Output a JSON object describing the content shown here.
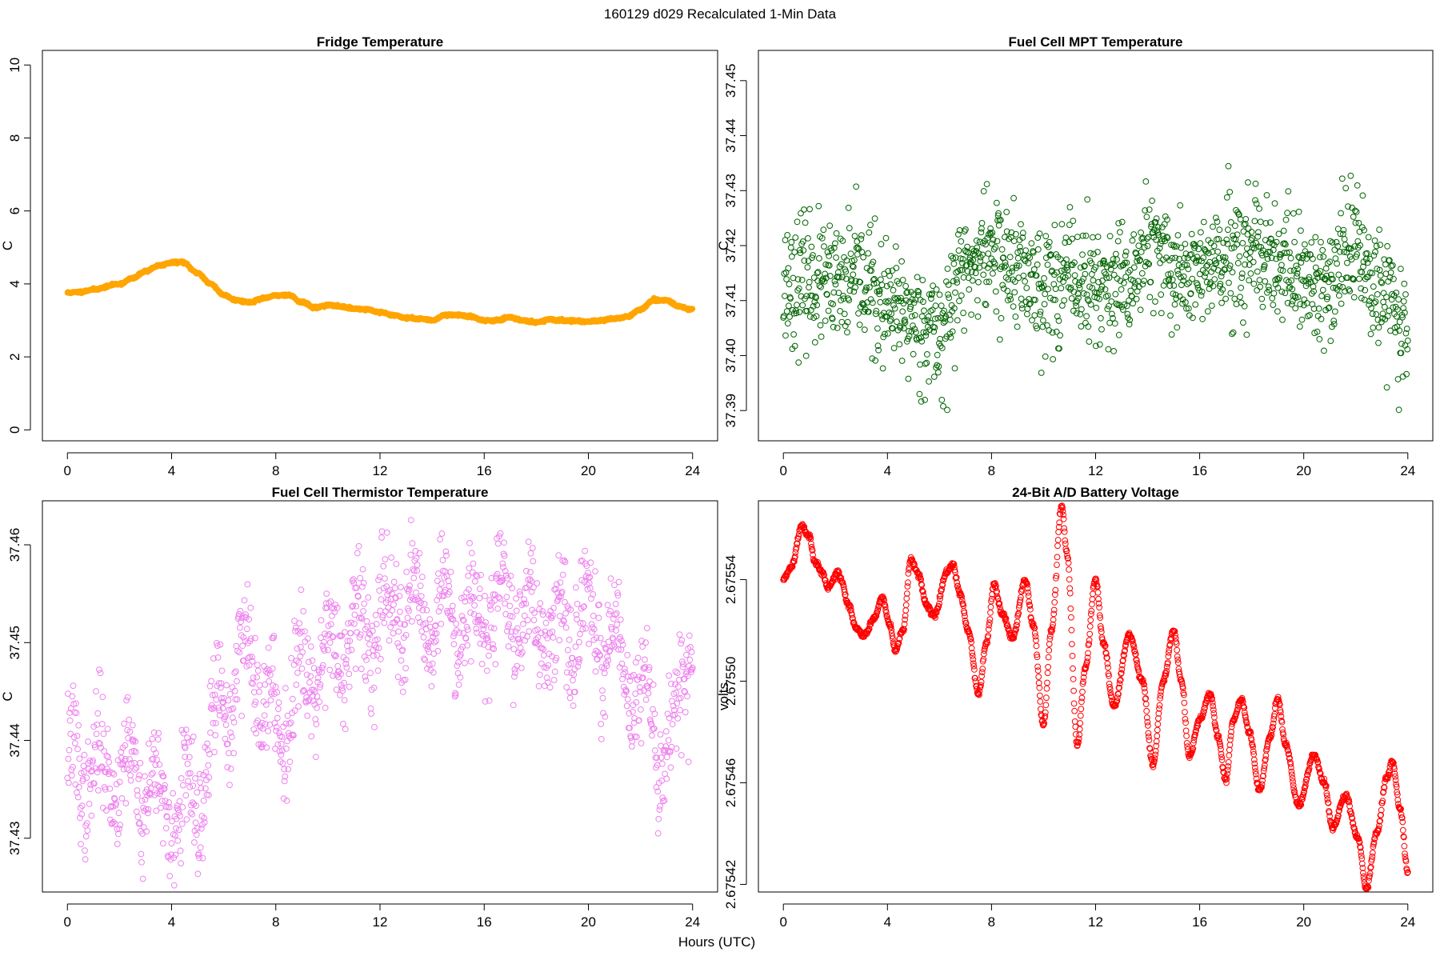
{
  "figure": {
    "title": "160129   d029   Recalculated 1-Min Data",
    "xlabel": "Hours (UTC)"
  },
  "chart_data": [
    {
      "id": "fridge",
      "type": "scatter",
      "title": "Fridge Temperature",
      "ylabel": "C",
      "xlabel": "",
      "x_ticks": [
        0,
        4,
        8,
        12,
        16,
        20,
        24
      ],
      "y_ticks": [
        0,
        2,
        4,
        6,
        8,
        10
      ],
      "y_tick_labels": [
        "0",
        "2",
        "4",
        "6",
        "8",
        "10"
      ],
      "xlim": [
        -0.96,
        24.96
      ],
      "ylim": [
        -0.3,
        10.4
      ],
      "color": "#FFA500",
      "marker_radius": 3.6,
      "marker_filled": true,
      "generator": "interp",
      "n_points": 1440,
      "keypoints": [
        [
          0.1,
          3.76
        ],
        [
          0.5,
          3.78
        ],
        [
          1,
          3.85
        ],
        [
          2,
          4.0
        ],
        [
          2.5,
          4.15
        ],
        [
          3,
          4.35
        ],
        [
          3.5,
          4.5
        ],
        [
          4,
          4.58
        ],
        [
          4.4,
          4.6
        ],
        [
          5,
          4.3
        ],
        [
          5.5,
          4.0
        ],
        [
          6,
          3.7
        ],
        [
          6.5,
          3.55
        ],
        [
          7,
          3.5
        ],
        [
          7.5,
          3.6
        ],
        [
          8,
          3.68
        ],
        [
          8.5,
          3.7
        ],
        [
          9,
          3.5
        ],
        [
          9.5,
          3.35
        ],
        [
          10,
          3.42
        ],
        [
          10.5,
          3.38
        ],
        [
          11,
          3.32
        ],
        [
          11.5,
          3.3
        ],
        [
          12,
          3.22
        ],
        [
          12.5,
          3.15
        ],
        [
          13,
          3.07
        ],
        [
          13.5,
          3.05
        ],
        [
          14,
          3.0
        ],
        [
          14.5,
          3.15
        ],
        [
          15,
          3.15
        ],
        [
          15.5,
          3.1
        ],
        [
          16,
          3.0
        ],
        [
          16.5,
          3.0
        ],
        [
          17,
          3.08
        ],
        [
          17.5,
          3.0
        ],
        [
          18,
          2.95
        ],
        [
          18.5,
          3.02
        ],
        [
          19,
          3.0
        ],
        [
          20,
          2.97
        ],
        [
          20.5,
          3.0
        ],
        [
          21,
          3.05
        ],
        [
          21.5,
          3.1
        ],
        [
          22,
          3.3
        ],
        [
          22.5,
          3.55
        ],
        [
          23,
          3.55
        ],
        [
          23.5,
          3.38
        ],
        [
          23.9,
          3.3
        ]
      ],
      "noise": 0.015,
      "seed": 11
    },
    {
      "id": "mpt",
      "type": "scatter",
      "title": "Fuel Cell MPT Temperature",
      "ylabel": "C",
      "xlabel": "",
      "x_ticks": [
        0,
        4,
        8,
        12,
        16,
        20,
        24
      ],
      "y_ticks": [
        37.39,
        37.4,
        37.41,
        37.42,
        37.43,
        37.44,
        37.45
      ],
      "y_tick_labels": [
        "37.39",
        "37.40",
        "37.41",
        "37.42",
        "37.43",
        "37.44",
        "37.45"
      ],
      "xlim": [
        -0.96,
        24.96
      ],
      "ylim": [
        37.3845,
        37.4555
      ],
      "color": "#006400",
      "marker_radius": 3.4,
      "marker_filled": false,
      "generator": "interp",
      "n_points": 1400,
      "keypoints": [
        [
          0,
          37.413
        ],
        [
          1,
          37.414
        ],
        [
          2,
          37.412
        ],
        [
          3,
          37.414
        ],
        [
          4,
          37.408
        ],
        [
          5,
          37.407
        ],
        [
          6,
          37.404
        ],
        [
          7,
          37.416
        ],
        [
          8,
          37.419
        ],
        [
          9,
          37.415
        ],
        [
          10,
          37.413
        ],
        [
          11,
          37.414
        ],
        [
          12,
          37.413
        ],
        [
          13,
          37.411
        ],
        [
          14,
          37.419
        ],
        [
          15,
          37.416
        ],
        [
          16,
          37.415
        ],
        [
          17,
          37.417
        ],
        [
          18,
          37.417
        ],
        [
          19,
          37.416
        ],
        [
          20,
          37.414
        ],
        [
          21,
          37.412
        ],
        [
          22,
          37.421
        ],
        [
          23,
          37.412
        ],
        [
          24,
          37.406
        ]
      ],
      "noise": 0.0055,
      "seed": 23
    },
    {
      "id": "thermistor",
      "type": "scatter",
      "title": "Fuel Cell Thermistor Temperature",
      "ylabel": "C",
      "xlabel": "",
      "x_ticks": [
        0,
        4,
        8,
        12,
        16,
        20,
        24
      ],
      "y_ticks": [
        37.43,
        37.44,
        37.45,
        37.46
      ],
      "y_tick_labels": [
        "37.43",
        "37.44",
        "37.45",
        "37.46"
      ],
      "xlim": [
        -0.96,
        24.96
      ],
      "ylim": [
        37.4245,
        37.4645
      ],
      "color": "#EE82EE",
      "marker_radius": 3.4,
      "marker_filled": false,
      "generator": "interp",
      "n_points": 1400,
      "keypoints": [
        [
          0,
          37.437
        ],
        [
          1,
          37.437
        ],
        [
          2,
          37.437
        ],
        [
          3,
          37.436
        ],
        [
          4,
          37.432
        ],
        [
          5,
          37.434
        ],
        [
          6,
          37.444
        ],
        [
          7,
          37.449
        ],
        [
          8,
          37.441
        ],
        [
          9,
          37.447
        ],
        [
          10,
          37.449
        ],
        [
          11,
          37.45
        ],
        [
          12,
          37.453
        ],
        [
          13,
          37.454
        ],
        [
          14,
          37.453
        ],
        [
          15,
          37.453
        ],
        [
          16,
          37.453
        ],
        [
          17,
          37.454
        ],
        [
          18,
          37.452
        ],
        [
          19,
          37.451
        ],
        [
          20,
          37.452
        ],
        [
          21,
          37.449
        ],
        [
          22,
          37.444
        ],
        [
          23,
          37.439
        ],
        [
          24,
          37.451
        ]
      ],
      "noise": 0.0028,
      "wave_amp": 0.0035,
      "wave_period": 1.1,
      "seed": 37
    },
    {
      "id": "battery",
      "type": "scatter",
      "title": "24-Bit A/D Battery Voltage",
      "ylabel": "volts",
      "xlabel": "",
      "x_ticks": [
        0,
        4,
        8,
        12,
        16,
        20,
        24
      ],
      "y_ticks": [
        2.67542,
        2.67546,
        2.6755,
        2.67554
      ],
      "y_tick_labels": [
        "2.67542",
        "2.67546",
        "2.67550",
        "2.67554"
      ],
      "xlim": [
        -0.96,
        24.96
      ],
      "ylim": [
        2.675417,
        2.675571
      ],
      "color": "#FF0000",
      "marker_radius": 3.4,
      "marker_filled": false,
      "generator": "interp",
      "n_points": 1440,
      "keypoints": [
        [
          0,
          2.67554
        ],
        [
          0.3,
          2.675545
        ],
        [
          0.7,
          2.675561
        ],
        [
          1.0,
          2.675557
        ],
        [
          1.2,
          2.675547
        ],
        [
          1.5,
          2.675543
        ],
        [
          1.7,
          2.675537
        ],
        [
          2.1,
          2.675543
        ],
        [
          2.2,
          2.67554
        ],
        [
          2.5,
          2.67553
        ],
        [
          2.8,
          2.675521
        ],
        [
          3.1,
          2.675518
        ],
        [
          3.5,
          2.675525
        ],
        [
          3.8,
          2.675533
        ],
        [
          4.1,
          2.675522
        ],
        [
          4.3,
          2.675512
        ],
        [
          4.6,
          2.67552
        ],
        [
          4.9,
          2.675548
        ],
        [
          5.2,
          2.675542
        ],
        [
          5.5,
          2.67553
        ],
        [
          5.8,
          2.675526
        ],
        [
          6.3,
          2.675543
        ],
        [
          6.5,
          2.675546
        ],
        [
          6.8,
          2.675534
        ],
        [
          7.1,
          2.67552
        ],
        [
          7.5,
          2.675495
        ],
        [
          7.8,
          2.675515
        ],
        [
          8.1,
          2.675538
        ],
        [
          8.4,
          2.675527
        ],
        [
          8.8,
          2.675517
        ],
        [
          9.3,
          2.67554
        ],
        [
          9.6,
          2.675522
        ],
        [
          10.0,
          2.675483
        ],
        [
          10.3,
          2.67552
        ],
        [
          10.7,
          2.675569
        ],
        [
          10.9,
          2.67555
        ],
        [
          11.3,
          2.675475
        ],
        [
          11.6,
          2.675505
        ],
        [
          12.0,
          2.67554
        ],
        [
          12.3,
          2.675515
        ],
        [
          12.7,
          2.67549
        ],
        [
          13.3,
          2.675518
        ],
        [
          13.8,
          2.6755
        ],
        [
          14.2,
          2.675467
        ],
        [
          14.6,
          2.6755
        ],
        [
          15.0,
          2.67552
        ],
        [
          15.3,
          2.6755
        ],
        [
          15.6,
          2.67547
        ],
        [
          16.0,
          2.675485
        ],
        [
          16.4,
          2.675495
        ],
        [
          16.7,
          2.675478
        ],
        [
          17.0,
          2.675461
        ],
        [
          17.3,
          2.675485
        ],
        [
          17.6,
          2.675493
        ],
        [
          17.9,
          2.67548
        ],
        [
          18.3,
          2.675457
        ],
        [
          18.7,
          2.675478
        ],
        [
          19.0,
          2.675493
        ],
        [
          19.3,
          2.675475
        ],
        [
          19.8,
          2.675451
        ],
        [
          20.4,
          2.675471
        ],
        [
          20.8,
          2.67546
        ],
        [
          21.1,
          2.675442
        ],
        [
          21.6,
          2.675455
        ],
        [
          22.1,
          2.675438
        ],
        [
          22.4,
          2.675418
        ],
        [
          22.8,
          2.67544
        ],
        [
          23.2,
          2.675462
        ],
        [
          23.4,
          2.675468
        ],
        [
          23.7,
          2.67545
        ],
        [
          24,
          2.675425
        ]
      ],
      "noise": 5e-07,
      "seed": 5
    }
  ]
}
